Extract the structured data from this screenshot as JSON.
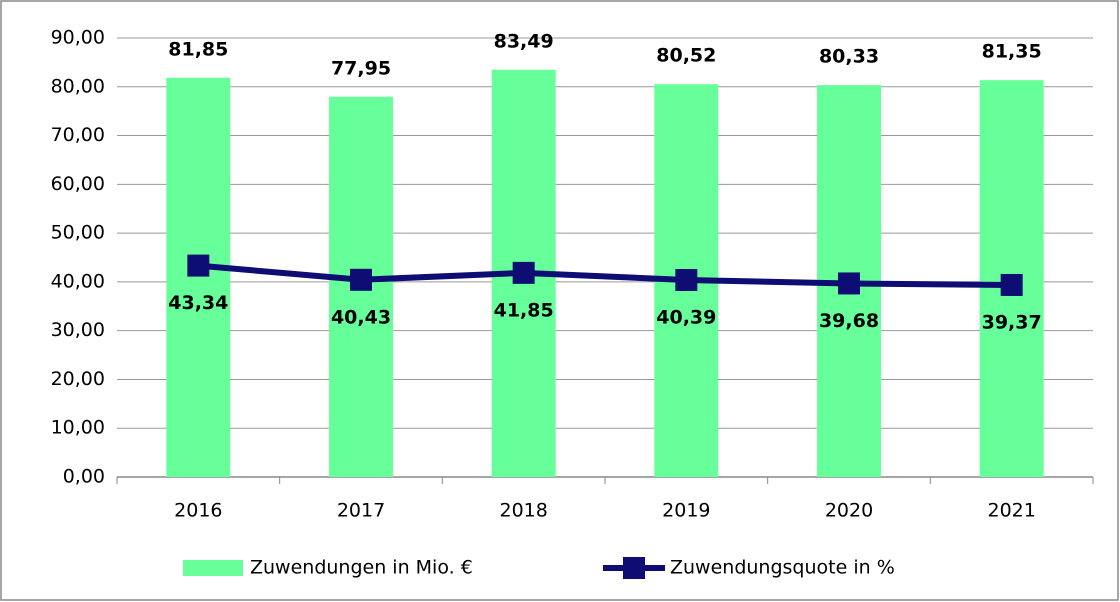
{
  "chart_data": {
    "type": "bar",
    "categories": [
      "2016",
      "2017",
      "2018",
      "2019",
      "2020",
      "2021"
    ],
    "series": [
      {
        "name": "Zuwendungen in Mio. €",
        "type": "bar",
        "color": "#66ff99",
        "values": [
          81.85,
          77.95,
          83.49,
          80.52,
          80.33,
          81.35
        ],
        "value_labels": [
          "81,85",
          "77,95",
          "83,49",
          "80,52",
          "80,33",
          "81,35"
        ]
      },
      {
        "name": "Zuwendungsquote in %",
        "type": "line",
        "color": "#0d0d73",
        "values": [
          43.34,
          40.43,
          41.85,
          40.39,
          39.68,
          39.37
        ],
        "value_labels": [
          "43,34",
          "40,43",
          "41,85",
          "40,39",
          "39,68",
          "39,37"
        ]
      }
    ],
    "ylim": [
      0,
      90
    ],
    "yticks": [
      {
        "value": 0,
        "label": "0,00"
      },
      {
        "value": 10,
        "label": "10,00"
      },
      {
        "value": 20,
        "label": "20,00"
      },
      {
        "value": 30,
        "label": "30,00"
      },
      {
        "value": 40,
        "label": "40,00"
      },
      {
        "value": 50,
        "label": "50,00"
      },
      {
        "value": 60,
        "label": "60,00"
      },
      {
        "value": 70,
        "label": "70,00"
      },
      {
        "value": 80,
        "label": "80,00"
      },
      {
        "value": 90,
        "label": "90,00"
      }
    ],
    "grid": true,
    "legend": "bottom"
  }
}
